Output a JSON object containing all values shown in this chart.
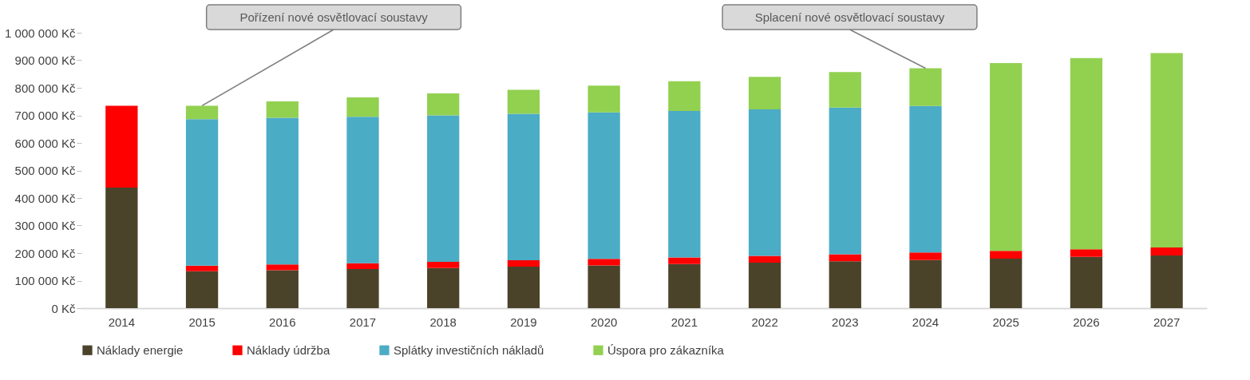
{
  "chart_data": {
    "type": "bar",
    "stacked": true,
    "categories": [
      "2014",
      "2015",
      "2016",
      "2017",
      "2018",
      "2019",
      "2020",
      "2021",
      "2022",
      "2023",
      "2024",
      "2025",
      "2026",
      "2027"
    ],
    "series": [
      {
        "name": "Náklady energie",
        "color": "#4a432a",
        "values": [
          438000,
          134000,
          138000,
          142000,
          146000,
          151000,
          155000,
          160000,
          165000,
          170000,
          175000,
          180000,
          186000,
          191000
        ]
      },
      {
        "name": "Náklady údržba",
        "color": "#ff0000",
        "values": [
          297000,
          20000,
          21000,
          21000,
          22000,
          23000,
          24000,
          24000,
          25000,
          26000,
          27000,
          28000,
          28000,
          29000
        ]
      },
      {
        "name": "Splátky investičních nákladů",
        "color": "#4bacc6",
        "values": [
          null,
          532000,
          532000,
          532000,
          532000,
          532000,
          532000,
          532000,
          532000,
          532000,
          532000,
          null,
          null,
          null
        ]
      },
      {
        "name": "Úspora pro zákazníka",
        "color": "#92d050",
        "values": [
          null,
          49000,
          60000,
          70000,
          80000,
          87000,
          97000,
          108000,
          118000,
          129000,
          137000,
          682000,
          694000,
          706000
        ]
      }
    ],
    "ylim": [
      0,
      1000000
    ],
    "yticks": [
      {
        "value": 0,
        "label": "0 Kč"
      },
      {
        "value": 100000,
        "label": "100 000 Kč"
      },
      {
        "value": 200000,
        "label": "200 000 Kč"
      },
      {
        "value": 300000,
        "label": "300 000 Kč"
      },
      {
        "value": 400000,
        "label": "400 000 Kč"
      },
      {
        "value": 500000,
        "label": "500 000 Kč"
      },
      {
        "value": 600000,
        "label": "600 000 Kč"
      },
      {
        "value": 700000,
        "label": "700 000 Kč"
      },
      {
        "value": 800000,
        "label": "800 000 Kč"
      },
      {
        "value": 900000,
        "label": "900 000 Kč"
      },
      {
        "value": 1000000,
        "label": "1 000 000 Kč"
      }
    ],
    "grid": false,
    "legend": "bottom",
    "annotations": [
      {
        "text": "Pořízení nové osvětlovací soustavy",
        "x": "2015",
        "y": 735000
      },
      {
        "text": "Splacení nové osvětlovací soustavy",
        "x": "2024",
        "y": 871000
      }
    ]
  }
}
